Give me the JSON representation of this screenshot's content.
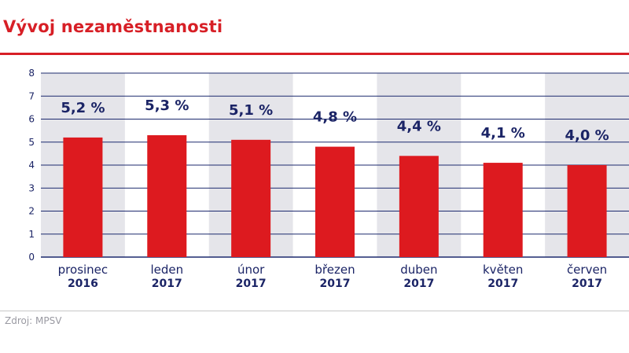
{
  "chart_data": {
    "type": "bar",
    "title": "Vývoj nezaměstnanosti",
    "xlabel": "",
    "ylabel": "",
    "ylim": [
      0,
      8
    ],
    "yticks": [
      "0",
      "1",
      "2",
      "3",
      "4",
      "5",
      "6",
      "7",
      "8"
    ],
    "grid": true,
    "categories": [
      {
        "month": "prosinec",
        "year": "2016"
      },
      {
        "month": "leden",
        "year": "2017"
      },
      {
        "month": "únor",
        "year": "2017"
      },
      {
        "month": "březen",
        "year": "2017"
      },
      {
        "month": "duben",
        "year": "2017"
      },
      {
        "month": "květen",
        "year": "2017"
      },
      {
        "month": "červen",
        "year": "2017"
      }
    ],
    "values": [
      5.2,
      5.3,
      5.1,
      4.8,
      4.4,
      4.1,
      4.0
    ],
    "data_labels": [
      "5,2 %",
      "5,3 %",
      "5,1 %",
      "4,8 %",
      "4,4 %",
      "4,1 %",
      "4,0 %"
    ]
  },
  "source": "Zdroj: MPSV",
  "colors": {
    "bar": "#dd1a1f",
    "band": "#e5e5ea",
    "grid": "#1d2a6e",
    "label": "#1b2466",
    "title": "#d71f26"
  }
}
